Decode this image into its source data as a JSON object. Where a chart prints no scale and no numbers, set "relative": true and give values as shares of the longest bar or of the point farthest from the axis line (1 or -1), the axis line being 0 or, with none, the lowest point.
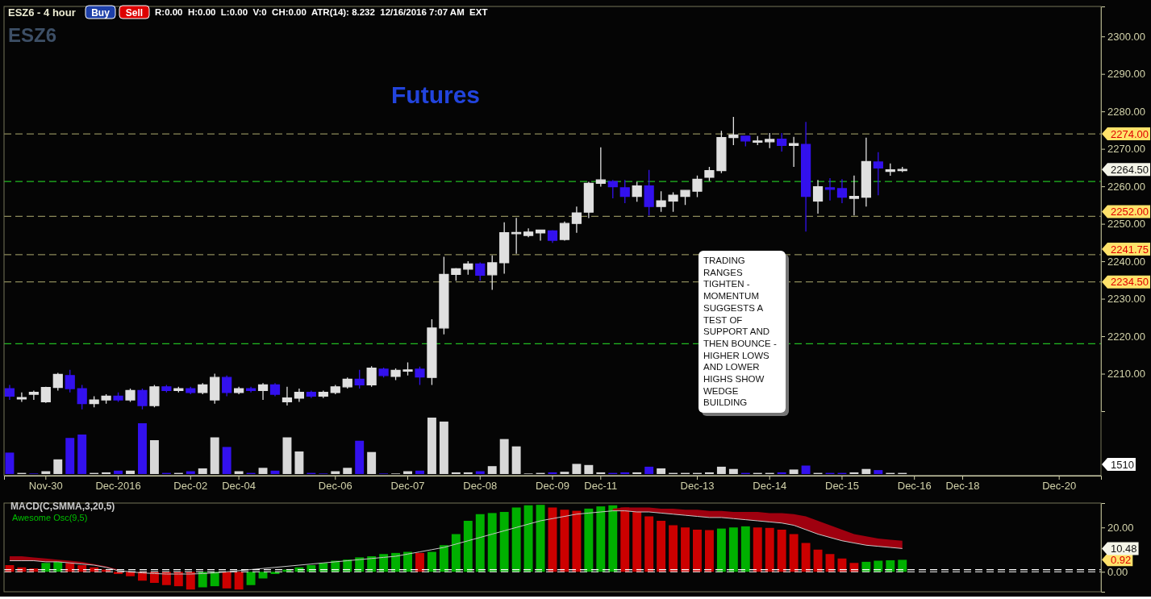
{
  "chart_data": [
    {
      "type": "candlestick",
      "title": "Futures",
      "categories": [
        null,
        null,
        null,
        "Nov-30",
        null,
        null,
        null,
        null,
        null,
        "Dec-2016",
        null,
        null,
        null,
        null,
        null,
        "Dec-02",
        null,
        null,
        null,
        "Dec-04",
        null,
        null,
        null,
        null,
        null,
        null,
        null,
        "Dec-06",
        null,
        null,
        null,
        null,
        null,
        "Dec-07",
        null,
        null,
        null,
        null,
        null,
        "Dec-08",
        null,
        null,
        null,
        null,
        null,
        "Dec-09",
        null,
        null,
        null,
        "Dec-11",
        null,
        null,
        null,
        null,
        null,
        null,
        null,
        "Dec-13",
        null,
        null,
        null,
        null,
        null,
        "Dec-14",
        null,
        null,
        null,
        null,
        null,
        "Dec-15",
        null,
        null,
        null,
        null,
        null,
        "Dec-16",
        null,
        null,
        null,
        "Dec-18",
        null,
        null,
        null,
        null,
        null,
        null,
        null,
        "Dec-20",
        null,
        null,
        null
      ],
      "ohlc": [
        [
          2206,
          2207,
          2203,
          2204
        ],
        [
          2203.5,
          2205,
          2202.5,
          2203.6
        ],
        [
          2204.5,
          2205.5,
          2203,
          2205
        ],
        [
          2202.5,
          2206.5,
          2202.2,
          2206.3
        ],
        [
          2206.3,
          2210.2,
          2205.5,
          2209.8
        ],
        [
          2209.5,
          2211,
          2205,
          2206
        ],
        [
          2206,
          2207,
          2200.5,
          2202
        ],
        [
          2202,
          2204,
          2201,
          2203
        ],
        [
          2203,
          2204.5,
          2202,
          2204
        ],
        [
          2204,
          2205,
          2202.5,
          2203
        ],
        [
          2203,
          2206,
          2202.5,
          2205.5
        ],
        [
          2205.5,
          2206,
          2200.5,
          2201.5
        ],
        [
          2201.5,
          2207,
          2201,
          2206.5
        ],
        [
          2206.5,
          2207,
          2205,
          2205.5
        ],
        [
          2205.5,
          2206.5,
          2205,
          2206
        ],
        [
          2206,
          2206.5,
          2204.5,
          2205
        ],
        [
          2205,
          2207.5,
          2204.5,
          2207
        ],
        [
          2203,
          2210,
          2202,
          2209
        ],
        [
          2209,
          2209.5,
          2204,
          2205
        ],
        [
          2205,
          2206.5,
          2204.5,
          2206
        ],
        [
          2206,
          2206.5,
          2205,
          2205.5
        ],
        [
          2205.5,
          2207.5,
          2203,
          2207
        ],
        [
          2207,
          2207.5,
          2204,
          2204.5
        ],
        [
          2202.5,
          2206.5,
          2201.5,
          2203.5
        ],
        [
          2203.5,
          2206,
          2202.5,
          2205
        ],
        [
          2205,
          2205.5,
          2203.5,
          2204
        ],
        [
          2204,
          2205.5,
          2203.5,
          2205
        ],
        [
          2205,
          2207,
          2204.5,
          2206.5
        ],
        [
          2206.5,
          2209,
          2206,
          2208.5
        ],
        [
          2208.5,
          2211,
          2206,
          2207
        ],
        [
          2207,
          2212,
          2206.5,
          2211.5
        ],
        [
          2211.2,
          2211.6,
          2209,
          2209.5
        ],
        [
          2209.3,
          2211.4,
          2208.3,
          2210.9
        ],
        [
          2210.8,
          2213,
          2209.5,
          2211
        ],
        [
          2211.2,
          2211.9,
          2207,
          2209.1
        ],
        [
          2209,
          2224.5,
          2207,
          2222.2
        ],
        [
          2222.2,
          2241.2,
          2220.5,
          2236.5
        ],
        [
          2236.5,
          2238.2,
          2234.8,
          2238
        ],
        [
          2237.9,
          2240,
          2236.4,
          2239.3
        ],
        [
          2239.3,
          2239.7,
          2234.8,
          2236.3
        ],
        [
          2236.4,
          2241.6,
          2232.4,
          2239.6
        ],
        [
          2239.6,
          2250.4,
          2236.7,
          2247.6
        ],
        [
          2247.4,
          2251.6,
          2242,
          2247.7
        ],
        [
          2246.9,
          2248.8,
          2246.4,
          2247.8
        ],
        [
          2247.6,
          2248.3,
          2245.5,
          2248.3
        ],
        [
          2248.1,
          2248.3,
          2244.9,
          2245.6
        ],
        [
          2245.8,
          2250.6,
          2245.5,
          2250.1
        ],
        [
          2250.1,
          2254.6,
          2247.6,
          2252.9
        ],
        [
          2253.1,
          2261.2,
          2251.5,
          2260.8
        ],
        [
          2260.8,
          2270.4,
          2259.9,
          2261.7
        ],
        [
          2261.3,
          2261.7,
          2256.8,
          2259.9
        ],
        [
          2259.6,
          2261.7,
          2255.5,
          2257.3
        ],
        [
          2257.3,
          2261.2,
          2255.9,
          2260.1
        ],
        [
          2260.1,
          2264.4,
          2252.2,
          2254.6
        ],
        [
          2254.6,
          2258.7,
          2253.2,
          2256.1
        ],
        [
          2256.1,
          2258.4,
          2253.2,
          2257.6
        ],
        [
          2257.3,
          2258.9,
          2255,
          2258.9
        ],
        [
          2258.7,
          2262.9,
          2257.1,
          2261.9
        ],
        [
          2262.4,
          2265.2,
          2261.4,
          2264.2
        ],
        [
          2264.2,
          2274.8,
          2263.5,
          2273
        ],
        [
          2273,
          2278.5,
          2271,
          2273.7
        ],
        [
          2273.4,
          2273.4,
          2270.7,
          2272.1
        ],
        [
          2271.8,
          2273.4,
          2271,
          2272.1
        ],
        [
          2271.9,
          2274.2,
          2270.2,
          2272.5
        ],
        [
          2272.6,
          2274.2,
          2269.3,
          2270.9
        ],
        [
          2270.9,
          2273.2,
          2265.2,
          2271.4
        ],
        [
          2271.2,
          2277.2,
          2247.9,
          2257.3
        ],
        [
          2256.1,
          2261.7,
          2252.7,
          2259.9
        ],
        [
          2259.6,
          2262.2,
          2256.2,
          2259.2
        ],
        [
          2259.4,
          2261.9,
          2255.5,
          2257.1
        ],
        [
          2256.8,
          2262.9,
          2252.2,
          2257.3
        ],
        [
          2257.1,
          2273,
          2254.6,
          2266.6
        ],
        [
          2266.5,
          2269.1,
          2257.6,
          2264.9
        ],
        [
          2264,
          2266.1,
          2262.8,
          2264.4
        ],
        [
          2264.2,
          2265.2,
          2263.8,
          2264.5
        ],
        null,
        null,
        null,
        null,
        null,
        null,
        null,
        null,
        null,
        null,
        null,
        null,
        null,
        null,
        null,
        null
      ],
      "colors": [
        "#3311ee",
        "#e0e0e0",
        "#e0e0e0",
        "#e0e0e0",
        "#e0e0e0",
        "#3311ee",
        "#3311ee",
        "#e0e0e0",
        "#e0e0e0",
        "#3311ee",
        "#e0e0e0",
        "#3311ee",
        "#e0e0e0",
        "#3311ee",
        "#e0e0e0",
        "#3311ee",
        "#e0e0e0",
        "#e0e0e0",
        "#3311ee",
        "#e0e0e0",
        "#3311ee",
        "#e0e0e0",
        "#3311ee",
        "#e0e0e0",
        "#e0e0e0",
        "#3311ee",
        "#e0e0e0",
        "#e0e0e0",
        "#e0e0e0",
        "#3311ee",
        "#e0e0e0",
        "#3311ee",
        "#e0e0e0",
        "#e0e0e0",
        "#3311ee",
        "#e0e0e0",
        "#e0e0e0",
        "#e0e0e0",
        "#e0e0e0",
        "#3311ee",
        "#e0e0e0",
        "#e0e0e0",
        "#e0e0e0",
        "#e0e0e0",
        "#e0e0e0",
        "#3311ee",
        "#e0e0e0",
        "#e0e0e0",
        "#e0e0e0",
        "#e0e0e0",
        "#3311ee",
        "#3311ee",
        "#e0e0e0",
        "#3311ee",
        "#e0e0e0",
        "#e0e0e0",
        "#e0e0e0",
        "#e0e0e0",
        "#e0e0e0",
        "#e0e0e0",
        "#e0e0e0",
        "#3311ee",
        "#e0e0e0",
        "#e0e0e0",
        "#3311ee",
        "#e0e0e0",
        "#3311ee",
        "#e0e0e0",
        "#3311ee",
        "#3311ee",
        "#e0e0e0",
        "#e0e0e0",
        "#3311ee",
        "#e0e0e0",
        "#e0e0e0",
        null,
        null,
        null,
        null,
        null,
        null,
        null,
        null,
        null,
        null,
        null,
        null,
        null,
        null,
        null,
        null
      ],
      "ylim": [
        2200,
        2308
      ],
      "yticks": [
        {
          "value": 2210,
          "label": "2210.00"
        },
        {
          "value": 2220,
          "label": "2220.00"
        },
        {
          "value": 2230,
          "label": "2230.00"
        },
        {
          "value": 2240,
          "label": "2240.00"
        },
        {
          "value": 2250,
          "label": "2250.00"
        },
        {
          "value": 2260,
          "label": "2260.00"
        },
        {
          "value": 2270,
          "label": "2270.00"
        },
        {
          "value": 2280,
          "label": "2280.00"
        },
        {
          "value": 2290,
          "label": "2290.00"
        },
        {
          "value": 2300,
          "label": "2300.00"
        }
      ],
      "ref_lines": [
        {
          "axis": "y",
          "value": 2274,
          "label": "2274.00",
          "color": "#8c8a5a",
          "line_style": "dashed"
        },
        {
          "axis": "y",
          "value": 2252,
          "label": "2252.00",
          "color": "#8c8a5a",
          "line_style": "dashed"
        },
        {
          "axis": "y",
          "value": 2241.75,
          "label": "2241.75",
          "color": "#8c8a5a",
          "line_style": "dashed"
        },
        {
          "axis": "y",
          "value": 2234.5,
          "label": "2234.50",
          "color": "#8c8a5a",
          "line_style": "dashed"
        },
        {
          "axis": "y",
          "value": 2261.3,
          "color": "#22bb22",
          "line_style": "dashed"
        },
        {
          "axis": "y",
          "value": 2218,
          "color": "#22bb22",
          "line_style": "dashed"
        }
      ],
      "annotations": [
        "ESZ6 - 4 hour",
        "Buy",
        "Sell",
        "R:0.00  H:0.00  L:0.00  V:0  CH:0.00  ATR(14): 8.232  12/16/2016 7:07 AM  EXT",
        "ESZ6",
        "TRADING RANGES TIGHTEN - MOMENTUM SUGGESTS A TEST OF SUPPORT AND THEN BOUNCE - HIGHER LOWS AND LOWER HIGHS SHOW WEDGE BUILDING",
        "2264.50"
      ],
      "tick_labels": "xy"
    },
    {
      "type": "bar",
      "relative": true,
      "tick_labels": false,
      "categories": [
        null,
        null,
        null,
        null,
        null,
        null,
        null,
        null,
        null,
        null,
        null,
        null,
        null,
        null,
        null,
        null,
        null,
        null,
        null,
        null,
        null,
        null,
        null,
        null,
        null,
        null,
        null,
        null,
        null,
        null,
        null,
        null,
        null,
        null,
        null,
        null,
        null,
        null,
        null,
        null,
        null,
        null,
        null,
        null,
        null,
        null,
        null,
        null,
        null,
        null,
        null,
        null,
        null,
        null,
        null,
        null,
        null,
        null,
        null,
        null,
        null,
        null,
        null,
        null,
        null,
        null,
        null,
        null,
        null,
        null,
        null,
        null,
        null,
        null,
        null,
        null,
        null,
        null,
        null,
        null,
        null,
        null,
        null,
        null,
        null,
        null,
        null,
        null,
        null,
        null,
        null
      ],
      "values": [
        0.38,
        0.02,
        0.01,
        0.05,
        0.26,
        0.64,
        0.7,
        0.02,
        0.03,
        0.06,
        0.06,
        0.9,
        0.6,
        0.02,
        0.02,
        0.05,
        0.1,
        0.65,
        0.48,
        0.05,
        0.02,
        0.11,
        0.06,
        0.65,
        0.4,
        0.02,
        0.01,
        0.05,
        0.11,
        0.59,
        0.39,
        0.01,
        0.01,
        0.05,
        0.06,
        1,
        0.93,
        0.03,
        0.03,
        0.05,
        0.14,
        0.62,
        0.49,
        0.01,
        0.02,
        0.03,
        0.04,
        0.18,
        0.16,
        0.03,
        0.02,
        0.03,
        0.03,
        0.13,
        0.1,
        0.02,
        0.02,
        0.02,
        0.03,
        0.13,
        0.09,
        0.02,
        0.02,
        0.02,
        0.03,
        0.08,
        0.15,
        0.02,
        0.02,
        0.02,
        0.03,
        0.09,
        0.07,
        0.02,
        0.02,
        null,
        null,
        null,
        null,
        null,
        null,
        null,
        null,
        null,
        null,
        null,
        null,
        null,
        null,
        null,
        null
      ],
      "colors": [
        "#3311ee",
        "#d8d8d8",
        "#3311ee",
        "#d8d8d8",
        "#d8d8d8",
        "#3311ee",
        "#3311ee",
        "#d8d8d8",
        "#d8d8d8",
        "#3311ee",
        "#d8d8d8",
        "#3311ee",
        "#d8d8d8",
        "#3311ee",
        "#d8d8d8",
        "#3311ee",
        "#d8d8d8",
        "#d8d8d8",
        "#3311ee",
        "#d8d8d8",
        "#3311ee",
        "#d8d8d8",
        "#3311ee",
        "#d8d8d8",
        "#d8d8d8",
        "#3311ee",
        "#3311ee",
        "#d8d8d8",
        "#d8d8d8",
        "#3311ee",
        "#d8d8d8",
        "#3311ee",
        "#d8d8d8",
        "#d8d8d8",
        "#3311ee",
        "#d8d8d8",
        "#d8d8d8",
        "#d8d8d8",
        "#d8d8d8",
        "#3311ee",
        "#d8d8d8",
        "#d8d8d8",
        "#d8d8d8",
        "#d8d8d8",
        "#d8d8d8",
        "#3311ee",
        "#d8d8d8",
        "#d8d8d8",
        "#d8d8d8",
        "#d8d8d8",
        "#3311ee",
        "#3311ee",
        "#d8d8d8",
        "#3311ee",
        "#d8d8d8",
        "#d8d8d8",
        "#d8d8d8",
        "#d8d8d8",
        "#d8d8d8",
        "#d8d8d8",
        "#d8d8d8",
        "#3311ee",
        "#d8d8d8",
        "#d8d8d8",
        "#3311ee",
        "#d8d8d8",
        "#3311ee",
        "#d8d8d8",
        "#3311ee",
        "#3311ee",
        "#d8d8d8",
        "#d8d8d8",
        "#3311ee",
        "#d8d8d8",
        "#d8d8d8",
        null,
        null,
        null,
        null,
        null,
        null,
        null,
        null,
        null,
        null,
        null,
        null,
        null,
        null,
        null,
        null
      ],
      "annotations": [
        "1510"
      ]
    },
    {
      "type": "bar",
      "tick_labels": "y",
      "legend": "top left",
      "categories": [
        null,
        null,
        null,
        null,
        null,
        null,
        null,
        null,
        null,
        null,
        null,
        null,
        null,
        null,
        null,
        null,
        null,
        null,
        null,
        null,
        null,
        null,
        null,
        null,
        null,
        null,
        null,
        null,
        null,
        null,
        null,
        null,
        null,
        null,
        null,
        null,
        null,
        null,
        null,
        null,
        null,
        null,
        null,
        null,
        null,
        null,
        null,
        null,
        null,
        null,
        null,
        null,
        null,
        null,
        null,
        null,
        null,
        null,
        null,
        null,
        null,
        null,
        null,
        null,
        null,
        null,
        null,
        null,
        null,
        null,
        null,
        null,
        null,
        null,
        null,
        null,
        null,
        null,
        null,
        null,
        null,
        null,
        null,
        null,
        null,
        null,
        null,
        null,
        null,
        null,
        null
      ],
      "ylim": [
        -9,
        31
      ],
      "yticks": [
        {
          "value": 0,
          "label": "0.00"
        },
        {
          "value": 20,
          "label": "20.00"
        }
      ],
      "series": [
        {
          "name": "Awesome Osc(9,5)",
          "type": "bar",
          "color": "#00c000",
          "values": [
            3,
            2,
            1.5,
            4,
            5,
            4,
            3,
            2,
            1,
            -1,
            -2,
            -4,
            -5,
            -6,
            -6.5,
            -8,
            -7,
            -6.5,
            -7.5,
            -8,
            -6,
            -3,
            -1,
            1,
            2,
            3,
            4,
            5,
            5.5,
            6.5,
            7,
            8,
            8.5,
            9,
            8.5,
            9,
            12,
            17,
            23,
            26,
            26.5,
            27,
            29,
            30,
            30.2,
            29,
            28,
            27.5,
            28.5,
            29.5,
            30,
            29,
            27,
            25,
            23,
            21,
            20,
            19,
            18.8,
            19.5,
            20,
            20.5,
            20,
            19.8,
            19,
            17,
            13,
            10,
            8,
            6,
            4,
            4.5,
            5,
            5.2,
            5.4,
            null,
            null,
            null,
            null,
            null,
            null,
            null,
            null,
            null,
            null,
            null,
            null,
            null,
            null,
            null,
            null
          ],
          "colors": [
            "#cc0000",
            "#cc0000",
            "#cc0000",
            "#00b000",
            "#00b000",
            "#cc0000",
            "#cc0000",
            "#cc0000",
            "#cc0000",
            "#cc0000",
            "#cc0000",
            "#cc0000",
            "#cc0000",
            "#cc0000",
            "#cc0000",
            "#cc0000",
            "#00b000",
            "#00b000",
            "#cc0000",
            "#cc0000",
            "#00b000",
            "#00b000",
            "#00b000",
            "#00b000",
            "#00b000",
            "#00b000",
            "#00b000",
            "#00b000",
            "#00b000",
            "#00b000",
            "#00b000",
            "#00b000",
            "#00b000",
            "#00b000",
            "#cc0000",
            "#00b000",
            "#00b000",
            "#00b000",
            "#00b000",
            "#00b000",
            "#00b000",
            "#00b000",
            "#00b000",
            "#00b000",
            "#00b000",
            "#cc0000",
            "#cc0000",
            "#cc0000",
            "#00b000",
            "#00b000",
            "#00b000",
            "#cc0000",
            "#cc0000",
            "#cc0000",
            "#cc0000",
            "#cc0000",
            "#cc0000",
            "#cc0000",
            "#cc0000",
            "#00b000",
            "#00b000",
            "#00b000",
            "#cc0000",
            "#cc0000",
            "#cc0000",
            "#cc0000",
            "#cc0000",
            "#cc0000",
            "#cc0000",
            "#cc0000",
            "#cc0000",
            "#00b000",
            "#00b000",
            "#00b000",
            "#00b000",
            null,
            null,
            null,
            null,
            null,
            null,
            null,
            null,
            null,
            null,
            null,
            null,
            null,
            null,
            null,
            null
          ]
        },
        {
          "name": "MACD(C,SMMA,3,20,5)",
          "type": "line",
          "color": "#c8c8c8",
          "values": [
            5,
            5,
            5,
            4.5,
            4.5,
            4,
            3.5,
            3,
            2,
            0.5,
            0,
            -0.5,
            -0.8,
            -1,
            -1,
            -1,
            -0.8,
            -0.5,
            0,
            0.5,
            1,
            1.5,
            2,
            2.5,
            3,
            3.5,
            4,
            4.5,
            5,
            5.5,
            6,
            6.5,
            7,
            8,
            9,
            10,
            11,
            12.5,
            14,
            15.5,
            17,
            18.5,
            20,
            21.5,
            23,
            24,
            25,
            26,
            26.5,
            27,
            27.5,
            27.5,
            27,
            27,
            26.5,
            26,
            25.5,
            25,
            24.5,
            24.5,
            24,
            23.5,
            23,
            22.5,
            22,
            21,
            19,
            17,
            15.5,
            14,
            13,
            12,
            11.5,
            11,
            10.5,
            null,
            null,
            null,
            null,
            null,
            null,
            null,
            null,
            null,
            null,
            null,
            null,
            null,
            null,
            null,
            null
          ],
          "lower": [
            5,
            5,
            5,
            4.5,
            4.5,
            4,
            3.5,
            3,
            2,
            0.5,
            null,
            null,
            null,
            null,
            null,
            null,
            null,
            null,
            null,
            null,
            null,
            null,
            null,
            null,
            null,
            null,
            null,
            null,
            null,
            null,
            null,
            null,
            null,
            null,
            null,
            null,
            null,
            null,
            null,
            null,
            null,
            null,
            null,
            null,
            null,
            null,
            null,
            null,
            null,
            null,
            27.5,
            27.5,
            27,
            27,
            26.5,
            26,
            25.5,
            25,
            24.5,
            24.5,
            24,
            23.5,
            23,
            22.5,
            22,
            21,
            19,
            17,
            15.5,
            14,
            13,
            12,
            11.5,
            11,
            10.5,
            null,
            null,
            null,
            null,
            null,
            null,
            null,
            null,
            null,
            null,
            null,
            null,
            null,
            null,
            null,
            null
          ],
          "upper": [
            7,
            7,
            6.5,
            6,
            5.5,
            5,
            4.5,
            3.5,
            2.5,
            1,
            null,
            null,
            null,
            null,
            null,
            null,
            null,
            null,
            null,
            null,
            null,
            null,
            null,
            null,
            null,
            null,
            null,
            null,
            null,
            null,
            null,
            null,
            null,
            null,
            null,
            null,
            null,
            null,
            null,
            null,
            null,
            null,
            null,
            null,
            null,
            null,
            null,
            null,
            null,
            null,
            28.5,
            29,
            29,
            29,
            28.5,
            28.5,
            28,
            28,
            27.5,
            27.5,
            27,
            27,
            27,
            26.5,
            26.5,
            26,
            25,
            23,
            21,
            19,
            17,
            16,
            15,
            14.5,
            14,
            null,
            null,
            null,
            null,
            null,
            null,
            null,
            null,
            null,
            null,
            null,
            null,
            null,
            null,
            null,
            null
          ]
        }
      ],
      "ref_lines": [
        {
          "axis": "y",
          "value": 0.92,
          "label": "0.92",
          "color": "#ffffff",
          "line_style": "dashed"
        },
        {
          "axis": "y",
          "value": 0,
          "color": "#ffffff",
          "line_style": "dashed"
        }
      ],
      "annotations": [
        "10.48"
      ]
    }
  ]
}
